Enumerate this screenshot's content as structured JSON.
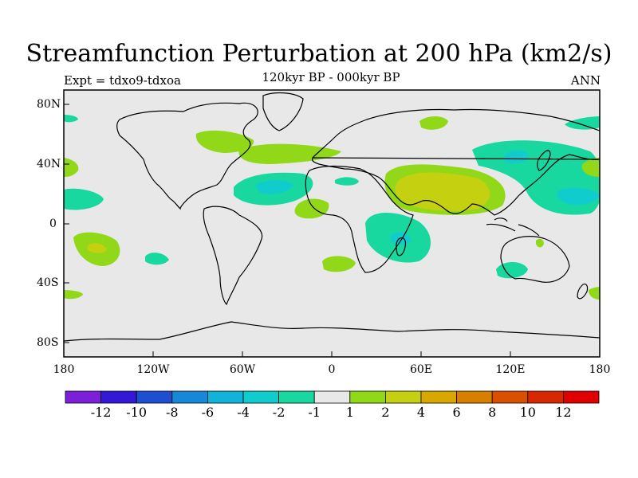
{
  "header": {
    "title": "Streamfunction Perturbation at 200 hPa (km2/s)",
    "left": "Expt = tdxo9-tdxoa",
    "center": "120kyr BP - 000kyr BP",
    "right": "ANN"
  },
  "axes": {
    "lat_labels": [
      "80N",
      "40N",
      "0",
      "40S",
      "80S"
    ],
    "lon_labels": [
      "180",
      "120W",
      "60W",
      "0",
      "60E",
      "120E",
      "180"
    ]
  },
  "colorbar": {
    "labels": [
      "-12",
      "-10",
      "-8",
      "-6",
      "-4",
      "-2",
      "-1",
      "1",
      "2",
      "4",
      "6",
      "8",
      "10",
      "12"
    ],
    "colors": [
      "#7b1fd8",
      "#3318d8",
      "#1e4fd0",
      "#1688d8",
      "#10b4d8",
      "#10cccc",
      "#18d8a0",
      "#e8e8e8",
      "#90d818",
      "#c4d010",
      "#d8a800",
      "#d87f00",
      "#d85000",
      "#d82800",
      "#e00000"
    ]
  },
  "map": {
    "background": "#e8e8e8",
    "coastline_color": "#000000"
  }
}
